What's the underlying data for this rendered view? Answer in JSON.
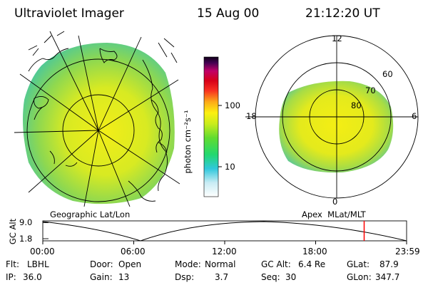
{
  "header": {
    "instrument": "Ultraviolet Imager",
    "date": "15 Aug 00",
    "time": "21:12:20 UT"
  },
  "colorbar": {
    "unit_label": "photon cm⁻²s⁻¹",
    "tick_100": "100",
    "tick_10": "10"
  },
  "geo_panel": {
    "label": "Geographic Lat/Lon"
  },
  "mag_panel": {
    "label": "Apex  MLat/MLT",
    "mlt_12": "12",
    "mlt_18": "18",
    "mlt_6": "6",
    "mlt_0": "0",
    "lat_60": "60",
    "lat_70": "70",
    "lat_80": "80"
  },
  "altitude_plot": {
    "axis_label": "GC Alt",
    "y_max": "9.0",
    "y_min": "1.8",
    "x_ticks": [
      "00:00",
      "06:00",
      "12:00",
      "18:00",
      "23:59"
    ],
    "current_time_marker_hours": 21.2
  },
  "status": {
    "flt_label": "Flt:",
    "flt_value": "LBHL",
    "ip_label": "IP:",
    "ip_value": "36.0",
    "door_label": "Door:",
    "door_value": "Open",
    "gain_label": "Gain:",
    "gain_value": "13",
    "mode_label": "Mode:",
    "mode_value": "Normal",
    "dsp_label": "Dsp:",
    "dsp_value": "3.7",
    "gcalt_label": "GC Alt:",
    "gcalt_value": "6.4 Re",
    "seq_label": "Seq:",
    "seq_value": "30",
    "glat_label": "GLat:",
    "glat_value": "87.9",
    "glon_label": "GLon:",
    "glon_value": "347.7"
  }
}
